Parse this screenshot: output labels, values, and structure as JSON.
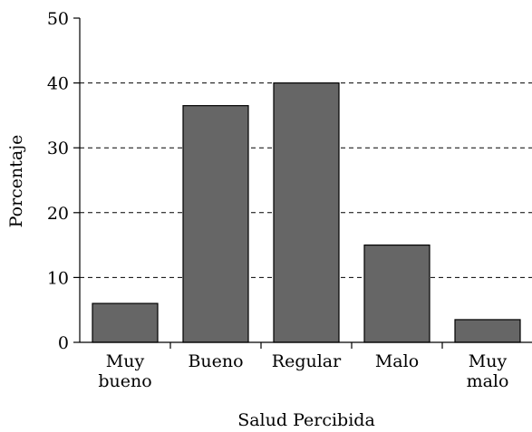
{
  "chart_data": {
    "type": "bar",
    "x_label": "Salud Percibida",
    "y_label": "Porcentaje",
    "categories": [
      "Muy bueno",
      "Bueno",
      "Regular",
      "Malo",
      "Muy malo"
    ],
    "values": [
      6,
      36.5,
      40,
      15,
      3.5
    ],
    "color": "#666666",
    "ylim": [
      0,
      50
    ],
    "yticks": [
      0,
      10,
      20,
      30,
      40,
      50
    ],
    "grid": true
  }
}
